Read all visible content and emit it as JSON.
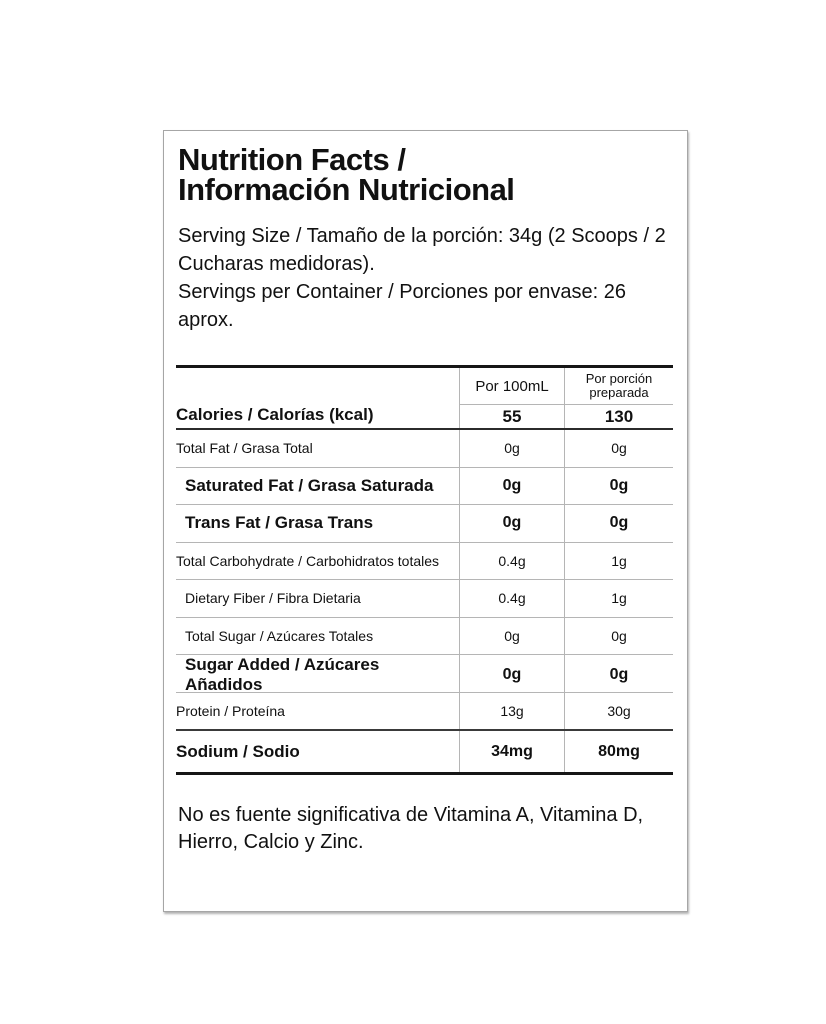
{
  "label": {
    "title_line1": "Nutrition Facts /",
    "title_line2": "Información Nutricional",
    "serving_size": "Serving Size / Tamaño de la porción: 34g  (2 Scoops / 2 Cucharas medidoras).",
    "servings_per_container": "Servings per Container / Porciones por envase: 26 aprox.",
    "footnote": "No es fuente significativa de Vitamina A, Vitamina D, Hierro, Calcio y Zinc."
  },
  "table": {
    "columns": [
      "Por 100mL",
      "Por porción preparada"
    ],
    "calories": {
      "label": "Calories / Calorías (kcal)",
      "per_100ml": "55",
      "per_portion": "130"
    },
    "rows": [
      {
        "label": "Total Fat / Grasa Total",
        "per_100ml": "0g",
        "per_portion": "0g",
        "bold": false,
        "indent": false
      },
      {
        "label": "Saturated Fat / Grasa Saturada",
        "per_100ml": "0g",
        "per_portion": "0g",
        "bold": true,
        "indent": true
      },
      {
        "label": "Trans Fat / Grasa Trans",
        "per_100ml": "0g",
        "per_portion": "0g",
        "bold": true,
        "indent": true
      },
      {
        "label": "Total Carbohydrate / Carbohidratos totales",
        "per_100ml": "0.4g",
        "per_portion": "1g",
        "bold": false,
        "indent": false
      },
      {
        "label": "Dietary Fiber / Fibra Dietaria",
        "per_100ml": "0.4g",
        "per_portion": "1g",
        "bold": false,
        "indent": true
      },
      {
        "label": "Total Sugar / Azúcares Totales",
        "per_100ml": "0g",
        "per_portion": "0g",
        "bold": false,
        "indent": true
      },
      {
        "label": "Sugar Added / Azúcares Añadidos",
        "per_100ml": "0g",
        "per_portion": "0g",
        "bold": true,
        "indent": true
      },
      {
        "label": "Protein / Proteína",
        "per_100ml": "13g",
        "per_portion": "30g",
        "bold": false,
        "indent": false
      },
      {
        "label": "Sodium / Sodio",
        "per_100ml": "34mg",
        "per_portion": "80mg",
        "bold": true,
        "indent": false
      }
    ]
  },
  "colors": {
    "text": "#111111",
    "rule_thin": "#b5b5b5",
    "rule_thick": "#161616",
    "card_border": "#a6a6a6"
  }
}
